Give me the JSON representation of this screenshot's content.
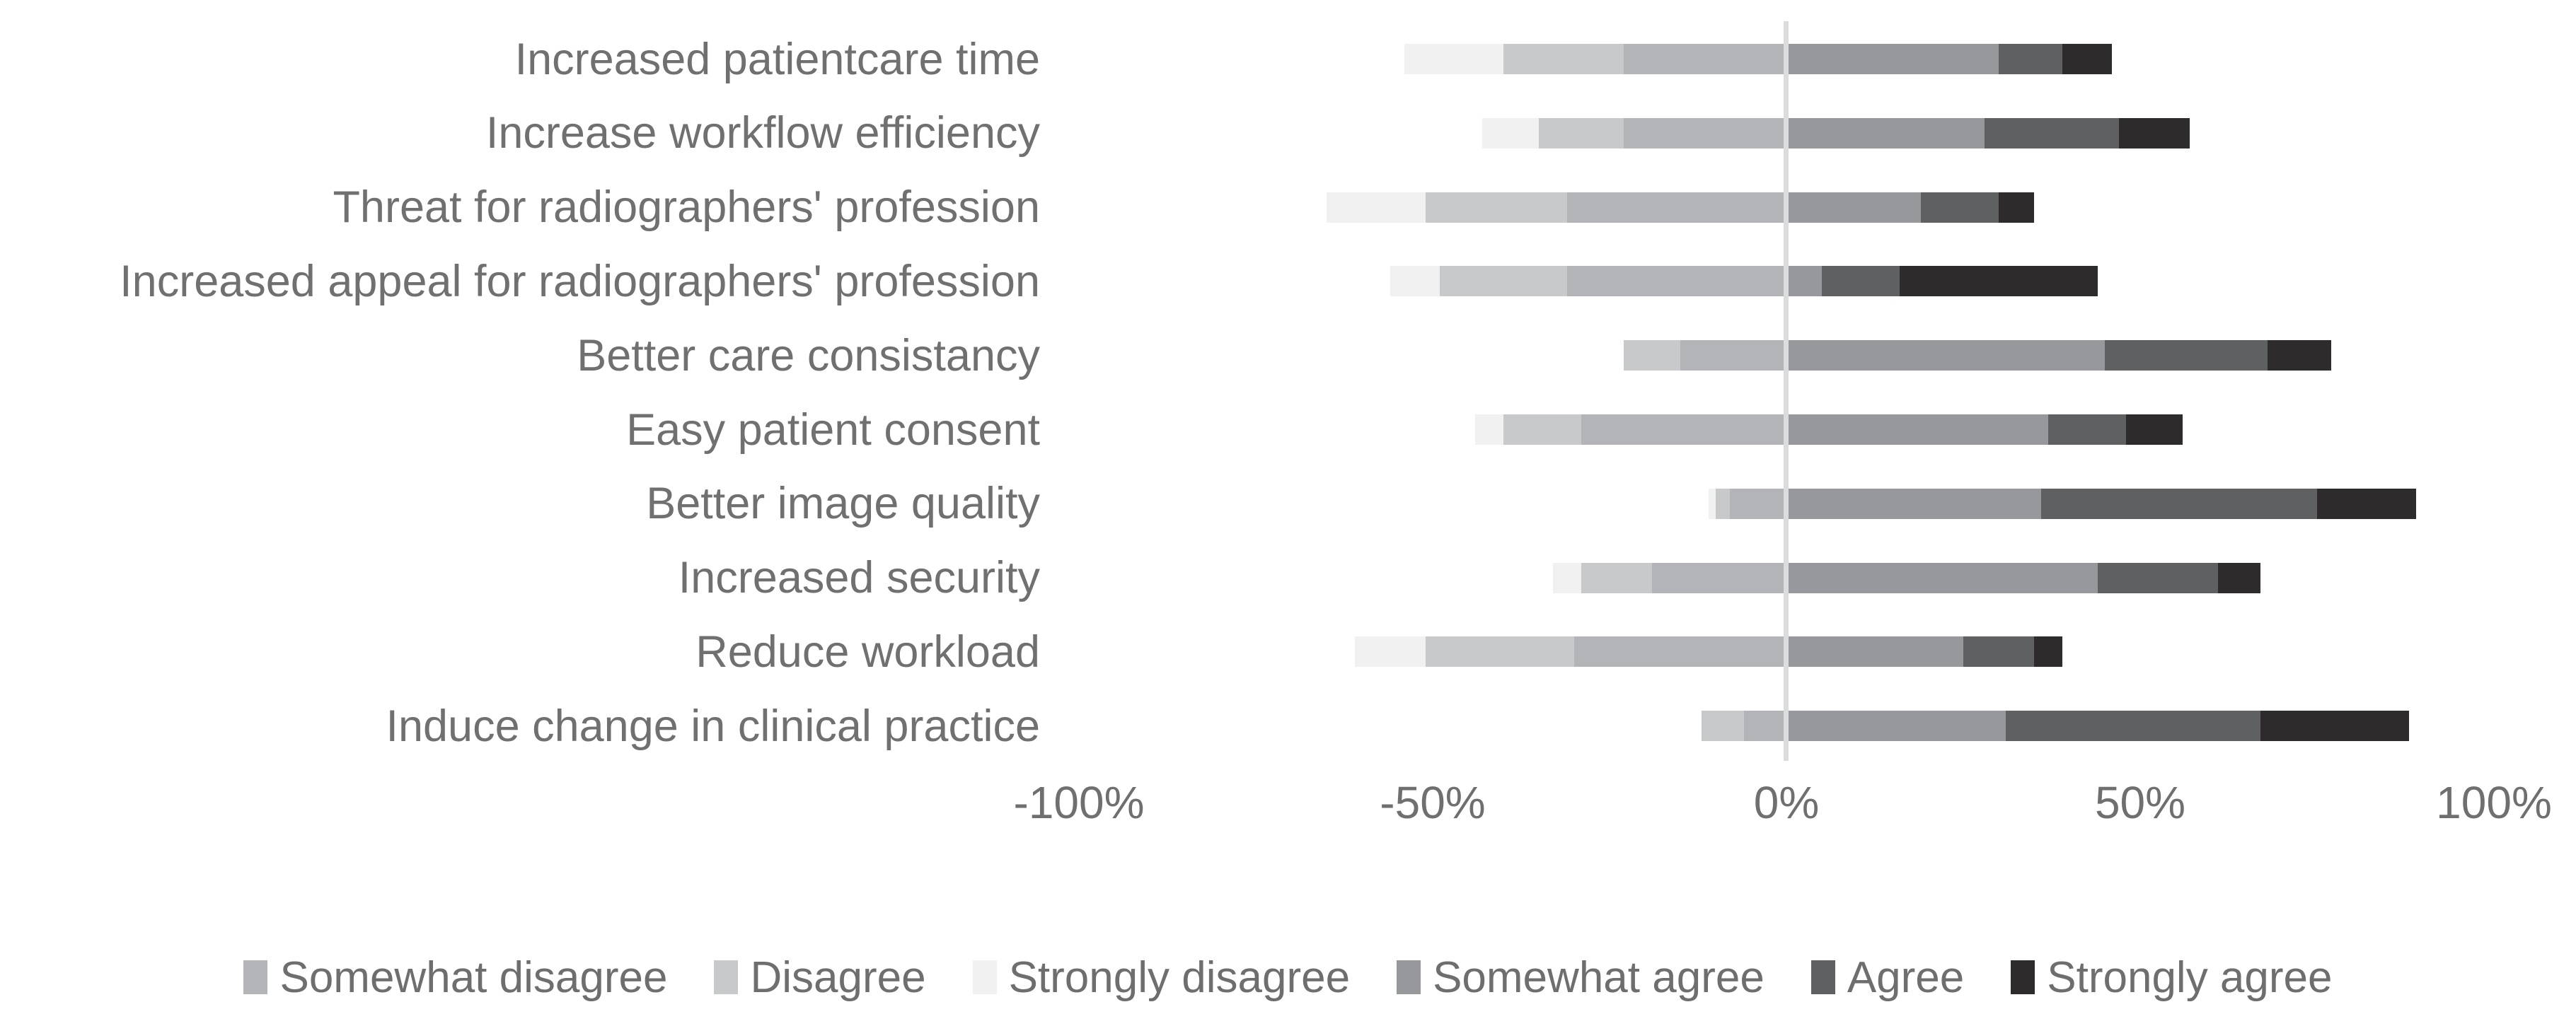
{
  "chart_data": {
    "type": "bar",
    "variant": "diverging-stacked-horizontal",
    "title": "",
    "xlabel": "",
    "ylabel": "",
    "x_axis": {
      "range": [
        -100,
        100
      ],
      "ticks": [
        {
          "label": "-100%",
          "value": -100
        },
        {
          "label": "-50%",
          "value": -50
        },
        {
          "label": "0%",
          "value": 0
        },
        {
          "label": "50%",
          "value": 50
        },
        {
          "label": "100%",
          "value": 100
        }
      ],
      "unit": "percent"
    },
    "grid": "zero-line-only",
    "legend_position": "bottom",
    "categories": [
      "Increased patientcare time",
      "Increase workflow efficiency",
      "Threat for radiographers' profession",
      "Increased appeal for radiographers' profession",
      "Better care consistancy",
      "Easy patient consent",
      "Better image quality",
      "Increased security",
      "Reduce workload",
      "Induce change in clinical practice"
    ],
    "stacking": {
      "negative_from_zero": [
        "Somewhat disagree",
        "Disagree",
        "Strongly disagree"
      ],
      "positive_from_zero": [
        "Somewhat agree",
        "Agree",
        "Strongly agree"
      ]
    },
    "series": [
      {
        "name": "Somewhat disagree",
        "color": "#b2b4b7",
        "side": "negative",
        "values": [
          23,
          23,
          31,
          31,
          15,
          29,
          8,
          19,
          30,
          6
        ]
      },
      {
        "name": "Disagree",
        "color": "#c7c9cb",
        "side": "negative",
        "values": [
          17,
          12,
          20,
          18,
          8,
          11,
          2,
          10,
          21,
          6
        ]
      },
      {
        "name": "Strongly disagree",
        "color": "#f1f1f2",
        "side": "negative",
        "values": [
          14,
          8,
          14,
          7,
          0,
          4,
          1,
          4,
          10,
          0
        ]
      },
      {
        "name": "Somewhat agree",
        "color": "#96989b",
        "side": "positive",
        "values": [
          30,
          28,
          19,
          5,
          45,
          37,
          36,
          44,
          25,
          31
        ]
      },
      {
        "name": "Agree",
        "color": "#5f6062",
        "side": "positive",
        "values": [
          9,
          19,
          11,
          11,
          23,
          11,
          39,
          17,
          10,
          36
        ]
      },
      {
        "name": "Strongly agree",
        "color": "#2d2b2c",
        "side": "positive",
        "values": [
          7,
          10,
          5,
          28,
          9,
          8,
          14,
          6,
          4,
          21
        ]
      }
    ],
    "zero_line_color": "#dbdcde"
  }
}
